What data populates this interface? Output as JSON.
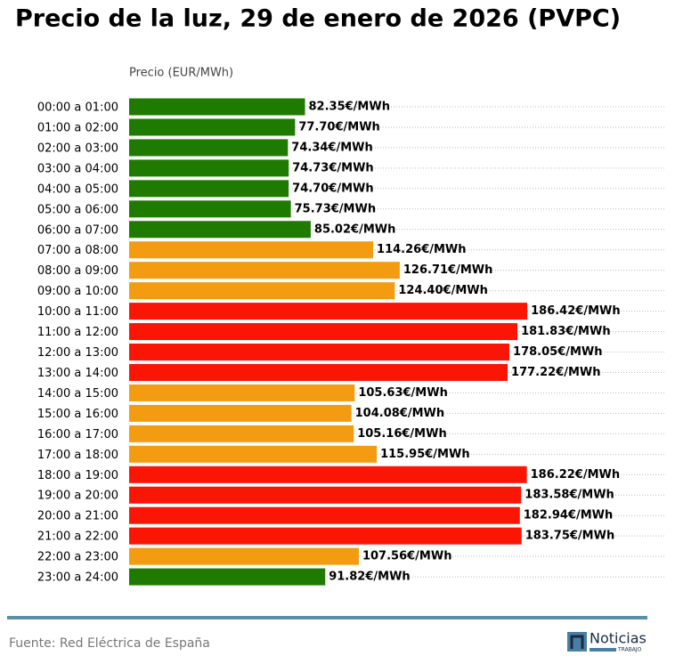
{
  "chart_data": {
    "type": "barh",
    "title": "Precio de la luz, 29 de enero de 2026 (PVPC)",
    "x_label": "Precio (EUR/MWh)",
    "categories": [
      "00:00 a 01:00",
      "01:00 a 02:00",
      "02:00 a 03:00",
      "03:00 a 04:00",
      "04:00 a 05:00",
      "05:00 a 06:00",
      "06:00 a 07:00",
      "07:00 a 08:00",
      "08:00 a 09:00",
      "09:00 a 10:00",
      "10:00 a 11:00",
      "11:00 a 12:00",
      "12:00 a 13:00",
      "13:00 a 14:00",
      "14:00 a 15:00",
      "15:00 a 16:00",
      "16:00 a 17:00",
      "17:00 a 18:00",
      "18:00 a 19:00",
      "19:00 a 20:00",
      "20:00 a 21:00",
      "21:00 a 22:00",
      "22:00 a 23:00",
      "23:00 a 24:00"
    ],
    "values": [
      82.35,
      77.7,
      74.34,
      74.73,
      74.7,
      75.73,
      85.02,
      114.26,
      126.71,
      124.4,
      186.42,
      181.83,
      178.05,
      177.22,
      105.63,
      104.08,
      105.16,
      115.95,
      186.22,
      183.58,
      182.94,
      183.75,
      107.56,
      91.82
    ],
    "value_labels": [
      "82.35€/MWh",
      "77.70€/MWh",
      "74.34€/MWh",
      "74.73€/MWh",
      "74.70€/MWh",
      "75.73€/MWh",
      "85.02€/MWh",
      "114.26€/MWh",
      "126.71€/MWh",
      "124.40€/MWh",
      "186.42€/MWh",
      "181.83€/MWh",
      "178.05€/MWh",
      "177.22€/MWh",
      "105.63€/MWh",
      "104.08€/MWh",
      "105.16€/MWh",
      "115.95€/MWh",
      "186.22€/MWh",
      "183.58€/MWh",
      "182.94€/MWh",
      "183.75€/MWh",
      "107.56€/MWh",
      "91.82€/MWh"
    ],
    "colors": [
      "#1e7b00",
      "#1e7b00",
      "#1e7b00",
      "#1e7b00",
      "#1e7b00",
      "#1e7b00",
      "#1e7b00",
      "#f39c12",
      "#f39c12",
      "#f39c12",
      "#fa1505",
      "#fa1505",
      "#fa1505",
      "#fa1505",
      "#f39c12",
      "#f39c12",
      "#f39c12",
      "#f39c12",
      "#fa1505",
      "#fa1505",
      "#fa1505",
      "#fa1505",
      "#f39c12",
      "#1e7b00"
    ],
    "xlim": [
      0,
      251
    ],
    "source": "Fuente: Red Eléctrica de España"
  },
  "logo": {
    "name": "Noticias",
    "subtitle": "TRABAJO"
  }
}
